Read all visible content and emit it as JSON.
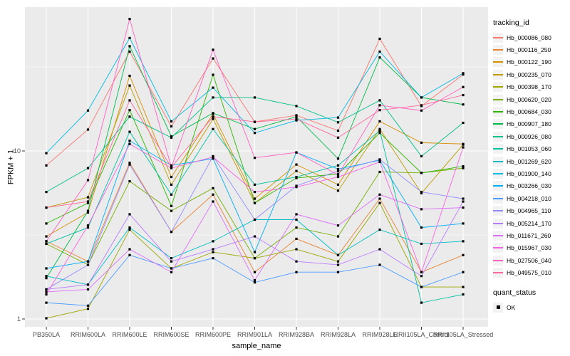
{
  "chart_data": {
    "type": "line",
    "title": "",
    "xlabel": "sample_name",
    "ylabel": "FPKM + 1",
    "y_scale": "log10",
    "ylim": [
      1,
      72
    ],
    "y_ticks": [
      1,
      10
    ],
    "y_minor_gridlines": [
      3.162,
      31.62
    ],
    "grid": "on",
    "panel_bg": "#EBEBEB",
    "grid_color": "#FFFFFF",
    "point_shape": "filled-square",
    "point_color": "#000000",
    "tick_label_color": "#4D4D4D",
    "legend_title": "tracking_id",
    "legend_position": "right",
    "categories": [
      "PB350LA",
      "RRIM600LA",
      "RRIM600LE",
      "RRIM600SE",
      "RRIM600PE",
      "RRIM901LA",
      "RRIM928BA",
      "RRIM928LA",
      "RRIM928LE",
      "RRII105LA_Control",
      "RRII105LA_Stressed"
    ],
    "series": [
      {
        "name": "Hb_000086_080",
        "color": "#F8766D",
        "values": [
          8.2,
          13.4,
          39,
          14.0,
          35.5,
          14.9,
          16.3,
          13.2,
          46.5,
          18.5,
          28.5
        ]
      },
      {
        "name": "Hb_000116_250",
        "color": "#EA8331",
        "values": [
          2.9,
          2.2,
          8.5,
          3.3,
          5.5,
          1.9,
          3.0,
          2.4,
          5.2,
          1.9,
          2.4
        ]
      },
      {
        "name": "Hb_000122_190",
        "color": "#D79000",
        "values": [
          3.1,
          4.3,
          28,
          7.0,
          16.6,
          5.2,
          8.3,
          6.3,
          15.0,
          11.2,
          11.0
        ]
      },
      {
        "name": "Hb_000235_070",
        "color": "#BE9C00",
        "values": [
          4.6,
          5.3,
          24.5,
          6.3,
          15.5,
          4.9,
          7.6,
          5.8,
          13.5,
          5.6,
          10.9
        ]
      },
      {
        "name": "Hb_000398_170",
        "color": "#9EA700",
        "values": [
          1.01,
          1.15,
          3.4,
          2.0,
          2.5,
          2.3,
          2.6,
          2.2,
          4.9,
          1.55,
          1.55
        ]
      },
      {
        "name": "Hb_000620_020",
        "color": "#74B000",
        "values": [
          2.8,
          2.1,
          6.6,
          4.4,
          6.0,
          2.3,
          3.5,
          3.1,
          7.5,
          7.4,
          7.9
        ]
      },
      {
        "name": "Hb_000684_030",
        "color": "#2CB600",
        "values": [
          3.7,
          4.9,
          17.5,
          4.7,
          28.4,
          4.9,
          6.9,
          7.3,
          12.8,
          7.4,
          8.1
        ]
      },
      {
        "name": "Hb_000907_180",
        "color": "#00BB4B",
        "values": [
          1.75,
          4.4,
          42,
          12.2,
          16.8,
          13.5,
          16.0,
          9.0,
          36,
          20.8,
          18.9
        ]
      },
      {
        "name": "Hb_000926_080",
        "color": "#00C08B",
        "values": [
          5.7,
          7.9,
          16.0,
          12.0,
          20.8,
          20.8,
          18.5,
          14.8,
          20.0,
          9.3,
          14.7
        ]
      },
      {
        "name": "Hb_001053_060",
        "color": "#00C1A2",
        "values": [
          2.8,
          3.5,
          13.0,
          5.5,
          13.5,
          6.3,
          7.0,
          8.2,
          13.2,
          1.25,
          1.4
        ]
      },
      {
        "name": "Hb_001269_620",
        "color": "#00BFC4",
        "values": [
          1.8,
          1.6,
          3.5,
          2.3,
          2.9,
          3.9,
          3.9,
          2.4,
          3.4,
          2.8,
          2.9
        ]
      },
      {
        "name": "Hb_001900_140",
        "color": "#00BAE2",
        "values": [
          9.7,
          17.4,
          47,
          15.0,
          23.8,
          12.8,
          15.2,
          15.8,
          39,
          20.8,
          29
        ]
      },
      {
        "name": "Hb_003266_030",
        "color": "#00AFF6",
        "values": [
          2.0,
          2.2,
          11.5,
          8.2,
          9.0,
          2.5,
          9.8,
          7.8,
          8.8,
          3.5,
          3.7
        ]
      },
      {
        "name": "Hb_004218_010",
        "color": "#4D9DFF",
        "values": [
          1.25,
          1.2,
          2.4,
          2.0,
          2.3,
          1.65,
          1.9,
          1.9,
          2.1,
          1.55,
          1.9
        ]
      },
      {
        "name": "Hb_004965_110",
        "color": "#918BFF",
        "values": [
          1.5,
          2.1,
          8.3,
          3.3,
          9.3,
          3.9,
          6.2,
          7.6,
          8.9,
          5.7,
          5.2
        ]
      },
      {
        "name": "Hb_005214_170",
        "color": "#BC7CFF",
        "values": [
          1.5,
          1.6,
          4.2,
          2.2,
          2.6,
          3.1,
          2.2,
          2.1,
          2.6,
          1.8,
          5.0
        ]
      },
      {
        "name": "Hb_011671_260",
        "color": "#DD6DF8",
        "values": [
          1.45,
          1.5,
          2.6,
          1.9,
          5.0,
          1.7,
          4.2,
          3.6,
          5.5,
          4.5,
          4.6
        ]
      },
      {
        "name": "Hb_015967_030",
        "color": "#F562E4",
        "values": [
          1.4,
          3.6,
          11.0,
          7.9,
          9.2,
          5.7,
          6.1,
          7.0,
          8.6,
          1.9,
          10.5
        ]
      },
      {
        "name": "Hb_027506_040",
        "color": "#FF61C3",
        "values": [
          2.9,
          6.7,
          61,
          8.0,
          40,
          9.1,
          9.8,
          7.2,
          18.7,
          17.4,
          24
        ]
      },
      {
        "name": "Hb_049575_010",
        "color": "#FF689E",
        "values": [
          4.6,
          5.0,
          20,
          8.0,
          16.0,
          14.9,
          15.5,
          12.0,
          17.5,
          18.7,
          21.5
        ]
      }
    ],
    "point_legend": {
      "title": "quant_status",
      "items": [
        "OK"
      ]
    }
  }
}
